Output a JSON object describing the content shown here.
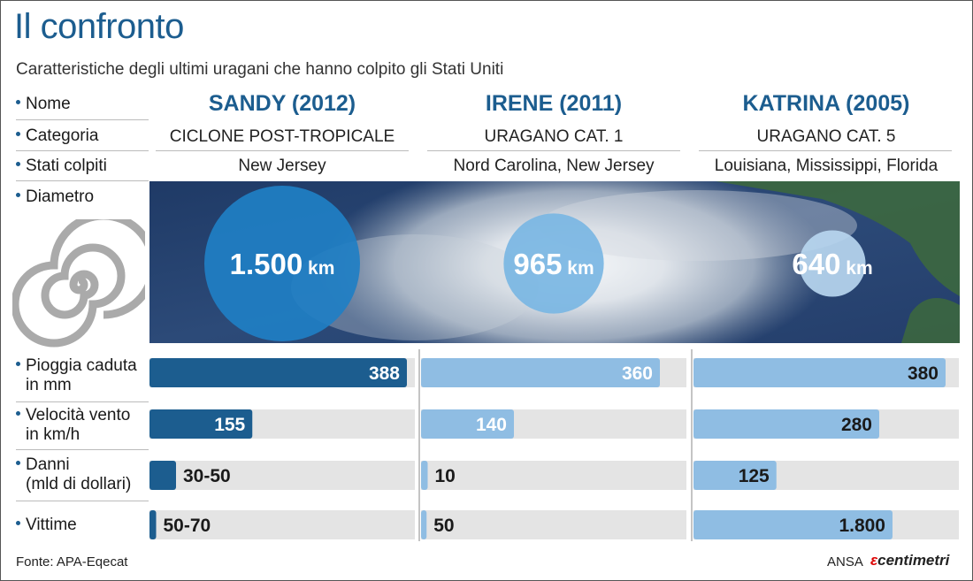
{
  "title": "Il confronto",
  "subtitle": "Caratteristiche degli ultimi uragani che hanno colpito gli Stati Uniti",
  "rows": {
    "nome": "Nome",
    "categoria": "Categoria",
    "stati": "Stati colpiti",
    "diametro": "Diametro",
    "pioggia_1": "Pioggia caduta",
    "pioggia_2": "in mm",
    "vento_1": "Velocità vento",
    "vento_2": "in km/h",
    "danni_1": "Danni",
    "danni_2": "(mld di dollari)",
    "vittime": "Vittime"
  },
  "columns": [
    {
      "name": "SANDY (2012)",
      "category": "CICLONE POST-TROPICALE",
      "states": "New Jersey"
    },
    {
      "name": "IRENE (2011)",
      "category": "URAGANO CAT. 1",
      "states": "Nord Carolina, New Jersey"
    },
    {
      "name": "KATRINA (2005)",
      "category": "URAGANO CAT. 5",
      "states": "Louisiana, Mississippi, Florida"
    }
  ],
  "colors": {
    "dark_blue": "#1c5d8f",
    "light_blue": "#8fbde3",
    "track": "#e4e4e4",
    "circle_dark": "#1f7fc4",
    "circle_mid": "#7ab6e3",
    "circle_light": "#b7d6ef"
  },
  "footer": {
    "source": "Fonte: APA-Eqecat",
    "credit_ansa": "ANSA",
    "credit_brand": "centimetri"
  },
  "chart_data": {
    "type": "bar",
    "categories": [
      "SANDY (2012)",
      "IRENE (2011)",
      "KATRINA (2005)"
    ],
    "diameter": {
      "unit": "km",
      "values": [
        1500,
        965,
        640
      ],
      "labels": [
        "1.500",
        "965",
        "640"
      ]
    },
    "metrics": [
      {
        "key": "pioggia",
        "values": [
          388,
          360,
          380
        ],
        "labels": [
          "388",
          "360",
          "380"
        ],
        "max": 400
      },
      {
        "key": "vento",
        "values": [
          155,
          140,
          280
        ],
        "labels": [
          "155",
          "140",
          "280"
        ],
        "max": 400
      },
      {
        "key": "danni",
        "values": [
          40,
          10,
          125
        ],
        "labels": [
          "30-50",
          "10",
          "125"
        ],
        "max": 400
      },
      {
        "key": "vittime",
        "values": [
          60,
          50,
          1800
        ],
        "labels": [
          "50-70",
          "50",
          "1.800"
        ],
        "max": 2400
      }
    ]
  }
}
